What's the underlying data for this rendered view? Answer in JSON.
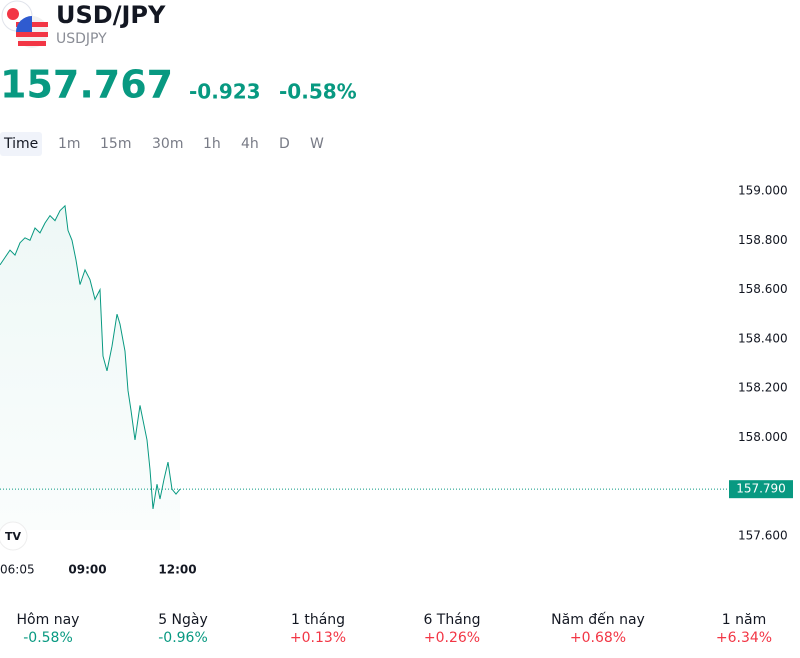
{
  "header": {
    "symbol": "USD/JPY",
    "ticker": "USDJPY",
    "price": "157.767",
    "change": "-0.923",
    "change_percent": "-0.58%"
  },
  "intervals": [
    "Time",
    "1m",
    "15m",
    "30m",
    "1h",
    "4h",
    "D",
    "W"
  ],
  "chart_data": {
    "type": "area-line",
    "color": "#089981",
    "x": [
      "06:05",
      "06:15",
      "06:25",
      "06:35",
      "06:45",
      "06:55",
      "07:05",
      "07:15",
      "07:25",
      "07:35",
      "07:45",
      "07:55",
      "08:05",
      "08:15",
      "08:21",
      "08:29",
      "08:37",
      "08:45",
      "08:55",
      "09:05",
      "09:15",
      "09:25",
      "09:31",
      "09:39",
      "09:49",
      "09:59",
      "10:05",
      "10:15",
      "10:21",
      "10:27",
      "10:35",
      "10:45",
      "10:51",
      "10:59",
      "11:05",
      "11:11",
      "11:19",
      "11:25",
      "11:33",
      "11:41",
      "11:49",
      "11:57",
      "12:05"
    ],
    "values": [
      158.7,
      158.73,
      158.76,
      158.74,
      158.79,
      158.81,
      158.8,
      158.85,
      158.83,
      158.87,
      158.9,
      158.88,
      158.92,
      158.94,
      158.84,
      158.8,
      158.72,
      158.62,
      158.68,
      158.64,
      158.56,
      158.6,
      158.33,
      158.27,
      158.37,
      158.5,
      158.46,
      158.35,
      158.19,
      158.11,
      157.99,
      158.13,
      158.07,
      157.99,
      157.87,
      157.71,
      157.81,
      157.75,
      157.83,
      157.9,
      157.79,
      157.77,
      157.79
    ],
    "ylim": [
      157.6,
      159.0
    ],
    "yticks": [
      {
        "value": 157.6,
        "label": "157.600"
      },
      {
        "value": 157.8,
        "label": "157.800"
      },
      {
        "value": 158.0,
        "label": "158.000"
      },
      {
        "value": 158.2,
        "label": "158.200"
      },
      {
        "value": 158.4,
        "label": "158.400"
      },
      {
        "value": 158.6,
        "label": "158.600"
      },
      {
        "value": 158.8,
        "label": "158.800"
      },
      {
        "value": 159.0,
        "label": "159.000"
      }
    ],
    "xticks": [
      "06:05",
      "09:00",
      "12:00"
    ],
    "last_price": {
      "value": 157.79,
      "label": "157.790"
    }
  },
  "stats": [
    {
      "label": "Hôm nay",
      "value": "-0.58%",
      "color": "#089981"
    },
    {
      "label": "5 Ngày",
      "value": "-0.96%",
      "color": "#089981"
    },
    {
      "label": "1 tháng",
      "value": "+0.13%",
      "color": "#f23645"
    },
    {
      "label": "6 Tháng",
      "value": "+0.26%",
      "color": "#f23645"
    },
    {
      "label": "Năm đến nay",
      "value": "+0.68%",
      "color": "#f23645"
    },
    {
      "label": "1 năm",
      "value": "+6.34%",
      "color": "#f23645"
    }
  ]
}
